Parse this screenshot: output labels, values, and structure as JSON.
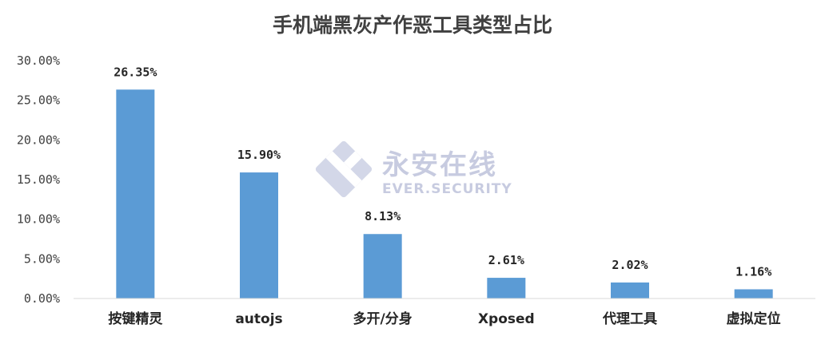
{
  "chart_data": {
    "type": "bar",
    "title": "手机端黑灰产作恶工具类型占比",
    "categories": [
      "按键精灵",
      "autojs",
      "多开/分身",
      "Xposed",
      "代理工具",
      "虚拟定位"
    ],
    "values": [
      26.35,
      15.9,
      8.13,
      2.61,
      2.02,
      1.16
    ],
    "data_labels": [
      "26.35%",
      "15.90%",
      "8.13%",
      "2.61%",
      "2.02%",
      "1.16%"
    ],
    "y_ticks": [
      "0.00%",
      "5.00%",
      "10.00%",
      "15.00%",
      "20.00%",
      "25.00%",
      "30.00%"
    ],
    "ylim": [
      0,
      30
    ],
    "xlabel": "",
    "ylabel": "",
    "grid": false,
    "legend": "none",
    "bar_color": "#5b9bd5"
  },
  "watermark": {
    "name_cn": "永安在线",
    "name_en": "EVER.SECURITY",
    "color": "#c7cbe0"
  }
}
